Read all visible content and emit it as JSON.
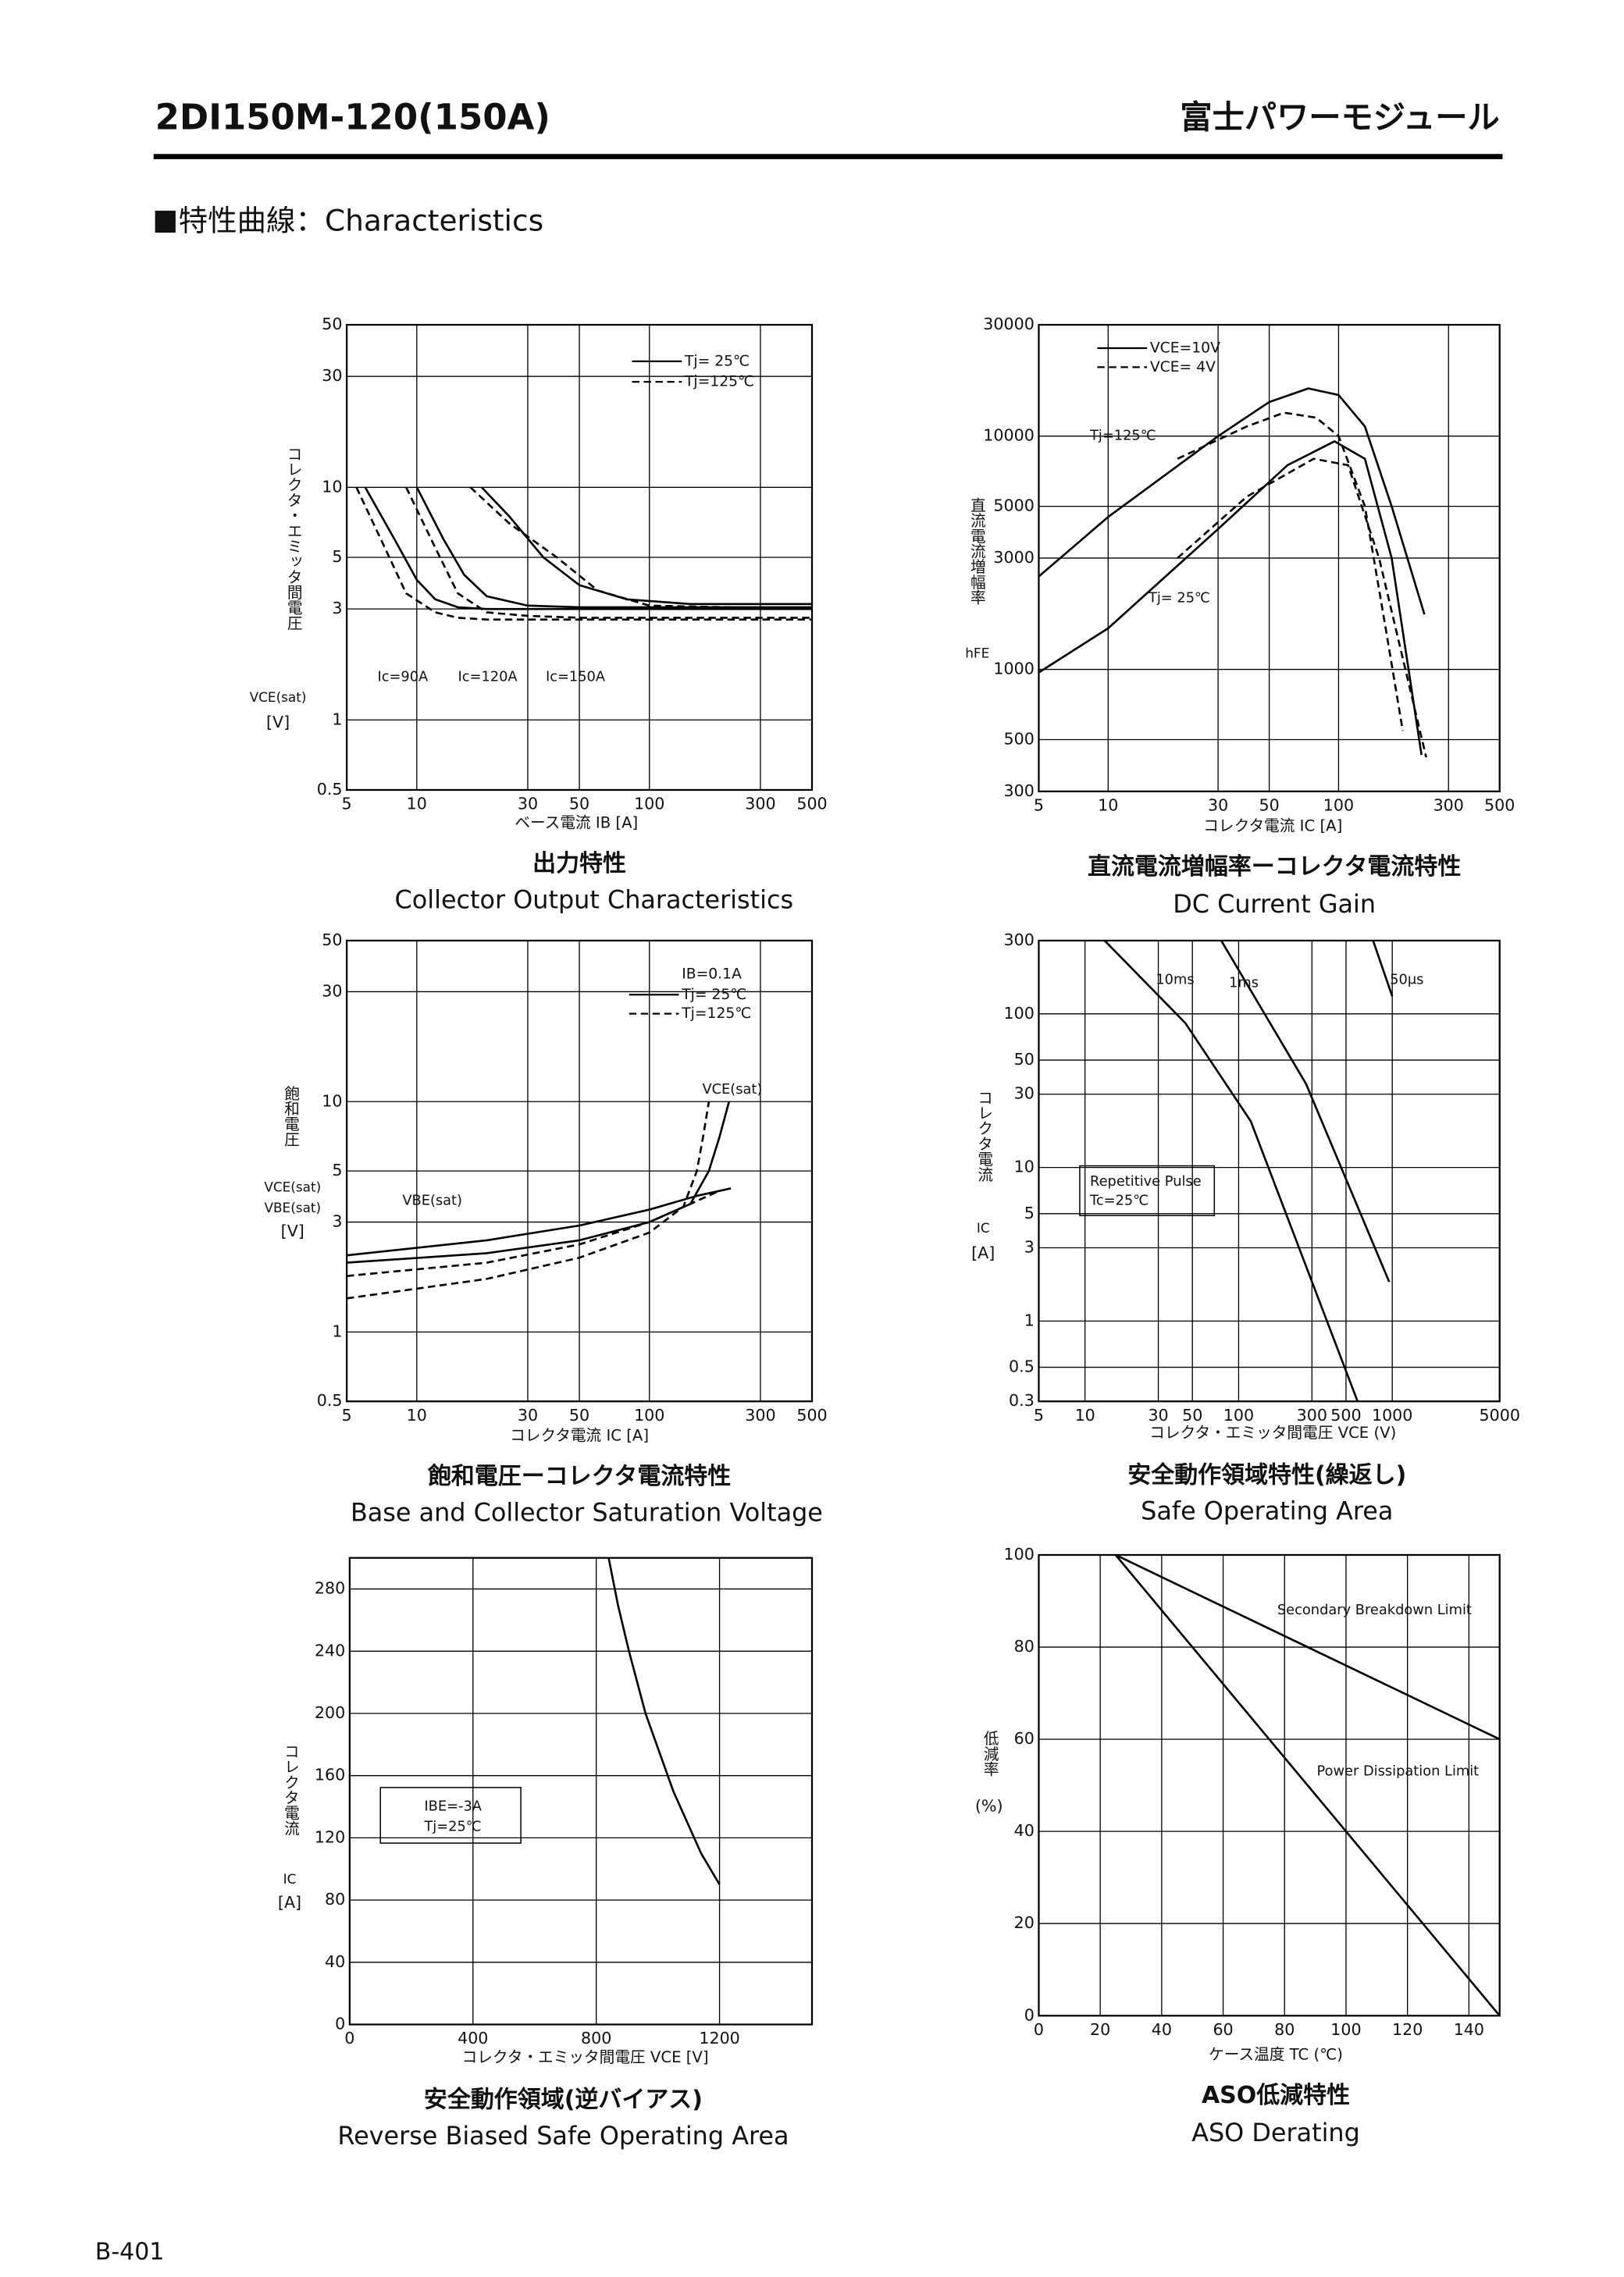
{
  "header": {
    "model": "2DI150M-120(150A)",
    "brand": "富士パワーモジュール"
  },
  "section_title": "特性曲線：Characteristics",
  "page_number": "B-401",
  "chart_data": [
    {
      "type": "line",
      "title": "出力特性",
      "subtitle": "Collector Output Characteristics",
      "xlabel": "ベース電流 IB [A]",
      "ylabel": "コレクタ・エミッタ間電圧",
      "ylabel_symbols": [
        "VCE(sat)"
      ],
      "ylabel_unit": "[V]",
      "xscale": "log",
      "yscale": "log",
      "xlim": [
        5,
        500
      ],
      "ylim": [
        0.5,
        50
      ],
      "xticks": [
        5,
        10,
        30,
        50,
        100,
        300,
        500
      ],
      "yticks": [
        0.5,
        1,
        3,
        5,
        10,
        30,
        50
      ],
      "grid": true,
      "legend": [
        {
          "label": "Tj= 25℃",
          "style": "solid"
        },
        {
          "label": "Tj=125℃",
          "style": "dashed"
        }
      ],
      "annotations": [
        "Ic=90A",
        "Ic=120A",
        "Ic=150A"
      ],
      "series": [
        {
          "style": "solid",
          "color": "#000000",
          "x": [
            6,
            8,
            10,
            12,
            15,
            20,
            50,
            500
          ],
          "values": [
            10,
            6,
            4,
            3.3,
            3.05,
            3.0,
            3.0,
            3.0
          ]
        },
        {
          "style": "dashed",
          "color": "#000000",
          "x": [
            5.5,
            7,
            9,
            12,
            15,
            20,
            50,
            500
          ],
          "values": [
            10,
            6,
            3.5,
            2.9,
            2.75,
            2.7,
            2.7,
            2.7
          ]
        },
        {
          "style": "solid",
          "color": "#000000",
          "x": [
            10,
            13,
            16,
            20,
            30,
            50,
            500
          ],
          "values": [
            10,
            6,
            4.2,
            3.4,
            3.1,
            3.05,
            3.05
          ]
        },
        {
          "style": "dashed",
          "color": "#000000",
          "x": [
            9,
            12,
            15,
            20,
            30,
            50,
            500
          ],
          "values": [
            10,
            5.5,
            3.5,
            2.9,
            2.8,
            2.75,
            2.75
          ]
        },
        {
          "style": "solid",
          "color": "#000000",
          "x": [
            19,
            25,
            35,
            50,
            80,
            150,
            500
          ],
          "values": [
            10,
            7.5,
            5,
            3.8,
            3.3,
            3.15,
            3.15
          ]
        },
        {
          "style": "dashed",
          "color": "#000000",
          "x": [
            17,
            25,
            40,
            60,
            100,
            500
          ],
          "values": [
            10,
            7,
            5,
            3.6,
            3.1,
            3.0
          ]
        }
      ]
    },
    {
      "type": "line",
      "title": "直流電流増幅率ーコレクタ電流特性",
      "subtitle": "DC Current Gain",
      "xlabel": "コレクタ電流 IC [A]",
      "ylabel": "直流電流増幅率",
      "ylabel_symbols": [
        "hFE"
      ],
      "xscale": "log",
      "yscale": "log",
      "xlim": [
        5,
        500
      ],
      "ylim": [
        300,
        30000
      ],
      "xticks": [
        5,
        10,
        30,
        50,
        100,
        300,
        500
      ],
      "yticks": [
        300,
        500,
        1000,
        3000,
        5000,
        10000,
        30000
      ],
      "grid": true,
      "legend": [
        {
          "label": "VCE=10V",
          "style": "solid"
        },
        {
          "label": "VCE= 4V",
          "style": "dashed"
        }
      ],
      "annotations": [
        "Tj=125℃",
        "Tj= 25℃"
      ],
      "series": [
        {
          "style": "solid",
          "color": "#000000",
          "x": [
            5,
            10,
            30,
            50,
            74,
            100,
            130,
            170,
            236
          ],
          "values": [
            2500,
            4500,
            10000,
            14000,
            16000,
            15000,
            11000,
            5000,
            1720
          ]
        },
        {
          "style": "dashed",
          "color": "#000000",
          "x": [
            20,
            40,
            58,
            80,
            100,
            130,
            160,
            190
          ],
          "values": [
            8000,
            11000,
            12600,
            12000,
            10000,
            5000,
            1500,
            545
          ]
        },
        {
          "style": "solid",
          "color": "#000000",
          "x": [
            5,
            10,
            30,
            60,
            96,
            130,
            170,
            229
          ],
          "values": [
            970,
            1500,
            4000,
            7500,
            9500,
            8000,
            3000,
            430
          ]
        },
        {
          "style": "dashed",
          "color": "#000000",
          "x": [
            20,
            40,
            78,
            110,
            150,
            200,
            240
          ],
          "values": [
            3000,
            5500,
            8000,
            7500,
            3000,
            900,
            420
          ]
        }
      ]
    },
    {
      "type": "line",
      "title": "飽和電圧ーコレクタ電流特性",
      "subtitle": "Base and Collector Saturation Voltage",
      "xlabel": "コレクタ電流 IC [A]",
      "ylabel": "飽和電圧",
      "ylabel_symbols": [
        "VCE(sat)",
        "VBE(sat)"
      ],
      "ylabel_unit": "[V]",
      "xscale": "log",
      "yscale": "log",
      "xlim": [
        5,
        500
      ],
      "ylim": [
        0.5,
        50
      ],
      "xticks": [
        5,
        10,
        30,
        50,
        100,
        300,
        500
      ],
      "yticks": [
        0.5,
        1,
        3,
        5,
        10,
        30,
        50
      ],
      "grid": true,
      "legend_title": "IB=0.1A",
      "legend": [
        {
          "label": "Tj= 25℃",
          "style": "solid"
        },
        {
          "label": "Tj=125℃",
          "style": "dashed"
        }
      ],
      "annotations": [
        "VCE(sat)",
        "VBE(sat)"
      ],
      "series": [
        {
          "style": "solid",
          "color": "#000000",
          "x": [
            5,
            20,
            50,
            100,
            160,
            224
          ],
          "values": [
            2.15,
            2.5,
            2.9,
            3.4,
            3.9,
            4.2
          ]
        },
        {
          "style": "solid",
          "color": "#000000",
          "x": [
            5,
            20,
            50,
            100,
            150,
            180,
            200,
            220
          ],
          "values": [
            2.0,
            2.2,
            2.5,
            3.0,
            3.6,
            5,
            7,
            10
          ]
        },
        {
          "style": "dashed",
          "color": "#000000",
          "x": [
            5,
            20,
            50,
            100,
            150,
            200
          ],
          "values": [
            1.75,
            2.0,
            2.4,
            3.0,
            3.6,
            4.1
          ]
        },
        {
          "style": "dashed",
          "color": "#000000",
          "x": [
            5,
            20,
            50,
            100,
            140,
            160,
            170,
            180
          ],
          "values": [
            1.4,
            1.7,
            2.1,
            2.7,
            3.5,
            5,
            7,
            10
          ]
        }
      ]
    },
    {
      "type": "line",
      "title": "安全動作領域特性(繰返し)",
      "subtitle": "Safe Operating Area",
      "xlabel": "コレクタ・エミッタ間電圧 VCE (V)",
      "ylabel": "コレクタ電流",
      "ylabel_symbols": [
        "IC"
      ],
      "ylabel_unit": "[A]",
      "xscale": "log",
      "yscale": "log",
      "xlim": [
        5,
        5000
      ],
      "ylim": [
        0.3,
        300
      ],
      "xticks": [
        5,
        10,
        30,
        50,
        100,
        300,
        500,
        1000,
        5000
      ],
      "yticks": [
        0.3,
        0.5,
        1,
        3,
        5,
        10,
        30,
        50,
        100,
        300
      ],
      "grid": true,
      "annotations": [
        "10ms",
        "1ms",
        "50μs",
        "Repetitive Pulse",
        "Tc=25℃"
      ],
      "series": [
        {
          "style": "solid",
          "color": "#000000",
          "x": [
            13.4,
            45,
            120,
            595
          ],
          "values": [
            300,
            87,
            20,
            0.3
          ]
        },
        {
          "style": "solid",
          "color": "#000000",
          "x": [
            77,
            275,
            955
          ],
          "values": [
            300,
            35,
            1.8
          ]
        },
        {
          "style": "solid",
          "color": "#000000",
          "x": [
            750,
            1000
          ],
          "values": [
            300,
            130
          ]
        }
      ]
    },
    {
      "type": "line",
      "title": "安全動作領域(逆バイアス)",
      "subtitle": "Reverse Biased Safe Operating Area",
      "xlabel": "コレクタ・エミッタ間電圧 VCE [V]",
      "ylabel": "コレクタ電流",
      "ylabel_symbols": [
        "IC"
      ],
      "ylabel_unit": "[A]",
      "xscale": "linear",
      "yscale": "linear",
      "xlim": [
        0,
        1500
      ],
      "ylim": [
        0,
        300
      ],
      "xticks": [
        0,
        400,
        800,
        1200
      ],
      "yticks": [
        0,
        40,
        80,
        120,
        160,
        200,
        240,
        280
      ],
      "grid": true,
      "annotations": [
        "IBE=-3A",
        "Tj=25℃"
      ],
      "series": [
        {
          "style": "solid",
          "color": "#000000",
          "x": [
            840,
            870,
            906,
            960,
            1050,
            1140,
            1200
          ],
          "values": [
            300,
            270,
            240,
            200,
            150,
            110,
            90
          ]
        }
      ]
    },
    {
      "type": "line",
      "title": "ASO低減特性",
      "subtitle": "ASO Derating",
      "xlabel": "ケース温度 TC (℃)",
      "ylabel": "低減率",
      "ylabel_unit": "(%)",
      "xscale": "linear",
      "yscale": "linear",
      "xlim": [
        0,
        150
      ],
      "ylim": [
        0,
        100
      ],
      "xticks": [
        0,
        20,
        40,
        60,
        80,
        100,
        120,
        140
      ],
      "yticks": [
        0,
        20,
        40,
        60,
        80,
        100
      ],
      "grid": true,
      "annotations": [
        "Secondary Breakdown Limit",
        "Power Dissipation Limit"
      ],
      "series": [
        {
          "style": "solid",
          "color": "#000000",
          "x": [
            25,
            150
          ],
          "values": [
            100,
            60
          ]
        },
        {
          "style": "solid",
          "color": "#000000",
          "x": [
            25,
            150
          ],
          "values": [
            100,
            0
          ]
        }
      ]
    }
  ]
}
